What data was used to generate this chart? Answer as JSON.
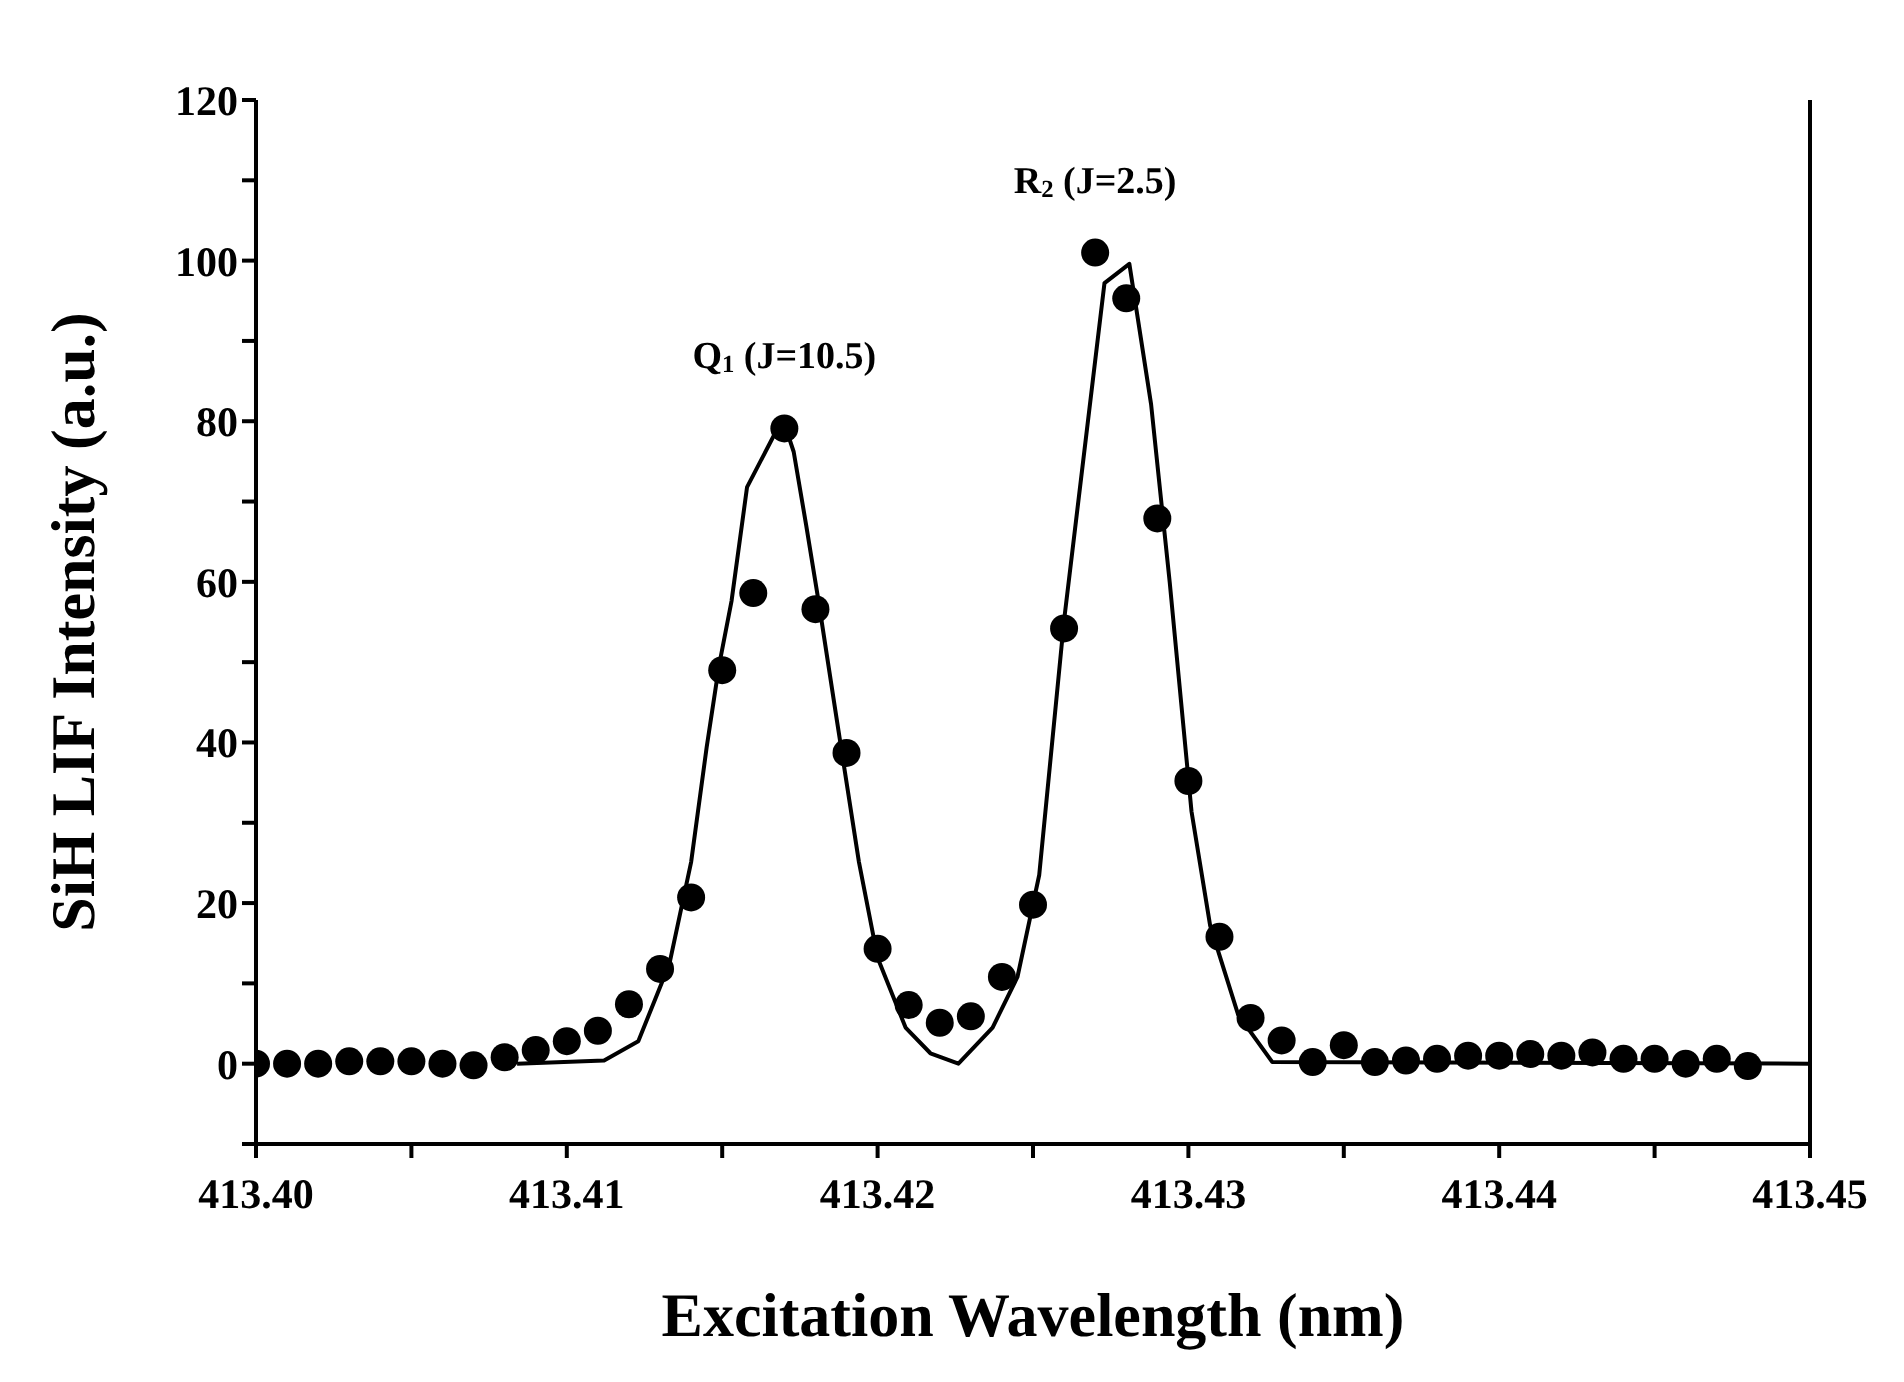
{
  "chart_data": {
    "type": "scatter",
    "xlabel": "Excitation Wavelength (nm)",
    "ylabel": "SiH LIF Intensity (a.u.)",
    "xlim": [
      413.4,
      413.45
    ],
    "xticks": [
      {
        "value": 413.4,
        "label": "413.40"
      },
      {
        "value": 413.405,
        "label": null
      },
      {
        "value": 413.41,
        "label": "413.41"
      },
      {
        "value": 413.415,
        "label": null
      },
      {
        "value": 413.42,
        "label": "413.42"
      },
      {
        "value": 413.425,
        "label": null
      },
      {
        "value": 413.43,
        "label": "413.43"
      },
      {
        "value": 413.435,
        "label": null
      },
      {
        "value": 413.44,
        "label": "413.44"
      },
      {
        "value": 413.445,
        "label": null
      },
      {
        "value": 413.45,
        "label": "413.45"
      }
    ],
    "ylim": [
      -10,
      120
    ],
    "yticks": [
      {
        "value": -10,
        "label": null
      },
      0,
      {
        "value": 10,
        "label": null
      },
      20,
      {
        "value": 30,
        "label": null
      },
      40,
      {
        "value": 50,
        "label": null
      },
      60,
      {
        "value": 70,
        "label": null
      },
      80,
      {
        "value": 90,
        "label": null
      },
      100,
      {
        "value": 110,
        "label": null
      },
      120
    ],
    "grid": false,
    "legend": false,
    "annotations": [
      "Q$_{1}$ (J=10.5)",
      "R$_{2}$ (J=2.5)"
    ],
    "series": [
      {
        "color": "#000000",
        "marker": "circle",
        "x": [
          413.4,
          413.401,
          413.402,
          413.403,
          413.404,
          413.405,
          413.406,
          413.407,
          413.408,
          413.409,
          413.41,
          413.411,
          413.412,
          413.413,
          413.414,
          413.415,
          413.416,
          413.417,
          413.418,
          413.419,
          413.42,
          413.421,
          413.422,
          413.423,
          413.424,
          413.425,
          413.426,
          413.427,
          413.428,
          413.429,
          413.43,
          413.431,
          413.432,
          413.433,
          413.434,
          413.435,
          413.436,
          413.437,
          413.438,
          413.439,
          413.44,
          413.441,
          413.442,
          413.443,
          413.444,
          413.445,
          413.446,
          413.447,
          413.448
        ],
        "values": [
          0,
          0,
          0,
          0.3,
          0.3,
          0.3,
          0,
          -0.2,
          0.8,
          1.7,
          2.8,
          4.1,
          7.4,
          11.8,
          20.7,
          49,
          58.6,
          79.1,
          56.6,
          38.7,
          14.3,
          7.3,
          5.1,
          5.9,
          10.8,
          19.8,
          54.2,
          101,
          95.3,
          67.9,
          35.2,
          15.8,
          5.7,
          2.9,
          0.2,
          2.3,
          0.2,
          0.4,
          0.6,
          1,
          1,
          1.2,
          1,
          1.4,
          0.6,
          0.6,
          0,
          0.6,
          -0.3
        ]
      },
      {
        "type": "line",
        "color": "#000000",
        "marker": "none",
        "line_style": "solid",
        "x": [
          413.4084,
          413.4112,
          413.4123,
          413.4133,
          413.414,
          413.4145,
          413.4149,
          413.4153,
          413.4158,
          413.4167,
          413.417,
          413.4173,
          413.4177,
          413.4181,
          413.4187,
          413.4194,
          413.42,
          413.4209,
          413.4217,
          413.4226,
          413.4237,
          413.4245,
          413.4252,
          413.426,
          413.4273,
          413.4281,
          413.4288,
          413.4294,
          413.4301,
          413.4307,
          413.4316,
          413.4327,
          413.45
        ],
        "values": [
          0,
          0.4,
          2.8,
          12.4,
          25.1,
          39.4,
          49.6,
          57.6,
          71.8,
          78.5,
          79.7,
          76.2,
          67.1,
          57.6,
          42.5,
          25.1,
          13.2,
          4.5,
          1.3,
          0,
          4.5,
          10.8,
          23.5,
          55.2,
          97.2,
          99.6,
          82.1,
          59.9,
          31.4,
          17.2,
          6.1,
          0.2,
          0
        ]
      }
    ]
  }
}
